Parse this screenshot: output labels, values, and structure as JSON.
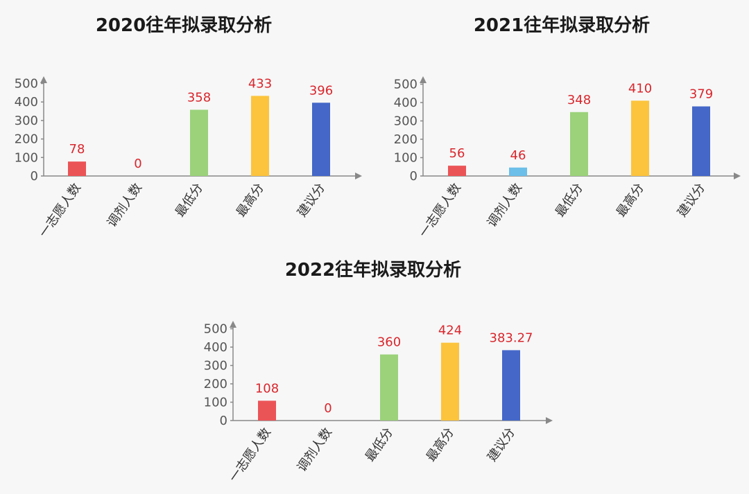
{
  "chart_data": [
    {
      "type": "bar",
      "title": "2020往年拟录取分析",
      "categories": [
        "一志愿人数",
        "调剂人数",
        "最低分",
        "最高分",
        "建议分"
      ],
      "values": [
        78,
        0,
        358,
        433,
        396
      ],
      "value_labels": [
        "78",
        "0",
        "358",
        "433",
        "396"
      ],
      "colors": [
        "#eb5457",
        "#6bbfe9",
        "#9bd27a",
        "#fcc43c",
        "#4467c8"
      ],
      "ylim": [
        0,
        500
      ],
      "yticks": [
        0,
        100,
        200,
        300,
        400,
        500
      ],
      "xlabel": "",
      "ylabel": ""
    },
    {
      "type": "bar",
      "title": "2021往年拟录取分析",
      "categories": [
        "一志愿人数",
        "调剂人数",
        "最低分",
        "最高分",
        "建议分"
      ],
      "values": [
        56,
        46,
        348,
        410,
        379
      ],
      "value_labels": [
        "56",
        "46",
        "348",
        "410",
        "379"
      ],
      "colors": [
        "#eb5457",
        "#6bbfe9",
        "#9bd27a",
        "#fcc43c",
        "#4467c8"
      ],
      "ylim": [
        0,
        500
      ],
      "yticks": [
        0,
        100,
        200,
        300,
        400,
        500
      ],
      "xlabel": "",
      "ylabel": ""
    },
    {
      "type": "bar",
      "title": "2022往年拟录取分析",
      "categories": [
        "一志愿人数",
        "调剂人数",
        "最低分",
        "最高分",
        "建议分"
      ],
      "values": [
        108,
        0,
        360,
        424,
        383.27
      ],
      "value_labels": [
        "108",
        "0",
        "360",
        "424",
        "383.27"
      ],
      "colors": [
        "#eb5457",
        "#6bbfe9",
        "#9bd27a",
        "#fcc43c",
        "#4467c8"
      ],
      "ylim": [
        0,
        500
      ],
      "yticks": [
        0,
        100,
        200,
        300,
        400,
        500
      ],
      "xlabel": "",
      "ylabel": ""
    }
  ]
}
